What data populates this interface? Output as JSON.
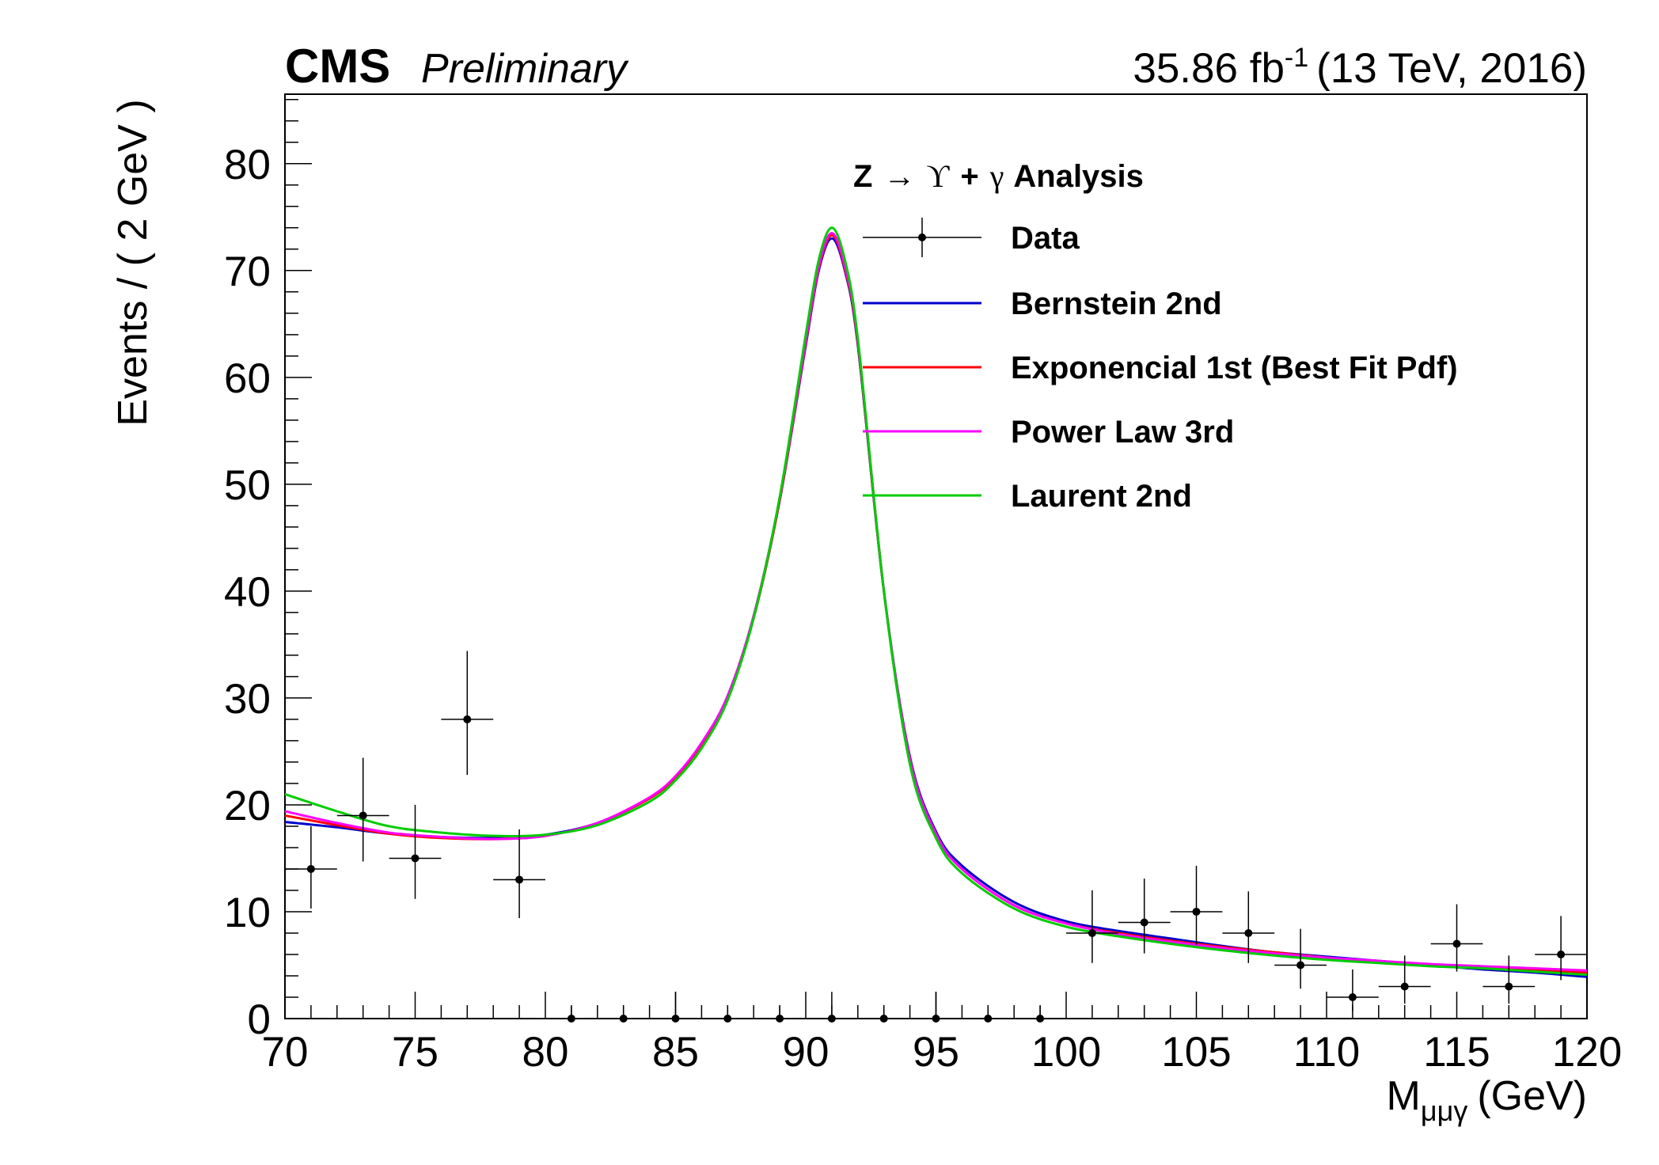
{
  "header": {
    "experiment": "CMS",
    "status": "Preliminary",
    "lumi": "35.86 fb",
    "lumi_exp": "-1",
    "energy": "(13 TeV, 2016)"
  },
  "chart_data": {
    "type": "line",
    "title": "Z → ϒ + γ Analysis",
    "title_parts": {
      "prefix": "Z",
      "arrow": "→",
      "upsilon": "ϒ",
      "plus": "+",
      "gamma": "γ",
      "suffix": "Analysis"
    },
    "xlabel": "M",
    "xlabel_sub": "μμγ",
    "xlabel_unit": "(GeV)",
    "ylabel": "Events / ( 2 GeV )",
    "xlim": [
      70,
      120
    ],
    "ylim": [
      0,
      86.5
    ],
    "x_ticks": [
      70,
      75,
      80,
      85,
      90,
      95,
      100,
      105,
      110,
      115,
      120
    ],
    "y_ticks": [
      0,
      10,
      20,
      30,
      40,
      50,
      60,
      70,
      80
    ],
    "legend_position": "top-right",
    "data": {
      "name": "Data",
      "x": [
        71,
        73,
        75,
        77,
        79,
        81,
        83,
        85,
        87,
        89,
        91,
        93,
        95,
        97,
        99,
        101,
        103,
        105,
        107,
        109,
        111,
        113,
        115,
        117,
        119
      ],
      "y": [
        14,
        19,
        15,
        28,
        13,
        0,
        0,
        0,
        0,
        0,
        0,
        0,
        0,
        0,
        0,
        8,
        9,
        10,
        8,
        5,
        2,
        3,
        7,
        3,
        6
      ],
      "err_low": [
        3.7,
        4.3,
        3.8,
        5.2,
        3.6,
        0,
        0,
        0,
        0,
        0,
        0,
        0,
        0,
        0,
        0,
        2.8,
        2.9,
        3.1,
        2.8,
        2.2,
        1.3,
        1.6,
        2.6,
        1.6,
        2.4
      ],
      "err_high": [
        4.0,
        5.4,
        5.0,
        6.4,
        4.7,
        1.15,
        1.15,
        2.5,
        1.15,
        1.15,
        2.5,
        1.15,
        2.5,
        1.15,
        1.15,
        4.0,
        4.1,
        4.3,
        3.9,
        3.4,
        2.6,
        2.9,
        3.7,
        2.9,
        3.6
      ],
      "x_half_width": 1
    },
    "series": [
      {
        "name": "Bernstein 2nd",
        "color": "#0000cc",
        "x": [
          70,
          72,
          74,
          76,
          78,
          80,
          82,
          84,
          85,
          86,
          87,
          88,
          89,
          90,
          90.5,
          91,
          91.5,
          92,
          93,
          94,
          95,
          96,
          98,
          100,
          102,
          104,
          106,
          108,
          110,
          112,
          114,
          116,
          118,
          120
        ],
        "y": [
          18.4,
          17.9,
          17.3,
          17.0,
          16.9,
          17.2,
          18.3,
          20.6,
          22.6,
          25.6,
          30.0,
          37.5,
          48.5,
          63.0,
          70.0,
          73.0,
          70.0,
          63.0,
          40.0,
          24.5,
          17.5,
          14.3,
          10.9,
          9.1,
          8.2,
          7.5,
          6.8,
          6.2,
          5.8,
          5.4,
          5.0,
          4.6,
          4.3,
          3.9
        ]
      },
      {
        "name": "Exponencial 1st (Best Fit Pdf)",
        "color": "#ff0000",
        "x": [
          70,
          72,
          74,
          76,
          78,
          80,
          82,
          84,
          85,
          86,
          87,
          88,
          89,
          90,
          90.5,
          91,
          91.5,
          92,
          93,
          94,
          95,
          96,
          98,
          100,
          102,
          104,
          106,
          108,
          110,
          112,
          114,
          116,
          118,
          120
        ],
        "y": [
          19.0,
          18.1,
          17.3,
          16.9,
          16.8,
          17.1,
          18.3,
          20.6,
          22.6,
          25.6,
          30.0,
          37.5,
          48.5,
          63.2,
          70.2,
          73.3,
          70.2,
          63.2,
          40.0,
          24.3,
          17.3,
          14.0,
          10.6,
          8.9,
          8.0,
          7.3,
          6.7,
          6.2,
          5.7,
          5.3,
          5.0,
          4.7,
          4.5,
          4.3
        ]
      },
      {
        "name": "Power Law 3rd",
        "color": "#ff00ff",
        "x": [
          70,
          72,
          74,
          76,
          78,
          80,
          82,
          84,
          85,
          86,
          87,
          88,
          89,
          90,
          90.5,
          91,
          91.5,
          92,
          93,
          94,
          95,
          96,
          98,
          100,
          102,
          104,
          106,
          108,
          110,
          112,
          114,
          116,
          118,
          120
        ],
        "y": [
          19.4,
          18.3,
          17.4,
          17.0,
          16.8,
          17.1,
          18.3,
          20.7,
          22.7,
          25.8,
          30.2,
          37.7,
          48.7,
          63.4,
          70.4,
          73.5,
          70.4,
          63.4,
          40.1,
          24.3,
          17.3,
          14.0,
          10.6,
          8.9,
          7.9,
          7.2,
          6.6,
          6.1,
          5.7,
          5.4,
          5.1,
          4.9,
          4.7,
          4.5
        ]
      },
      {
        "name": "Laurent 2nd",
        "color": "#00cc00",
        "x": [
          70,
          72,
          74,
          76,
          78,
          80,
          82,
          84,
          85,
          86,
          87,
          88,
          89,
          90,
          90.5,
          91,
          91.5,
          92,
          93,
          94,
          95,
          96,
          98,
          100,
          102,
          104,
          106,
          108,
          110,
          112,
          114,
          116,
          118,
          120
        ],
        "y": [
          21.0,
          19.4,
          18.0,
          17.4,
          17.1,
          17.2,
          18.1,
          20.3,
          22.3,
          25.3,
          29.8,
          37.5,
          48.8,
          64.0,
          71.0,
          74.0,
          71.0,
          63.6,
          40.0,
          23.8,
          16.9,
          13.6,
          10.3,
          8.6,
          7.7,
          7.0,
          6.4,
          5.9,
          5.5,
          5.2,
          4.9,
          4.7,
          4.4,
          4.1
        ]
      }
    ]
  }
}
